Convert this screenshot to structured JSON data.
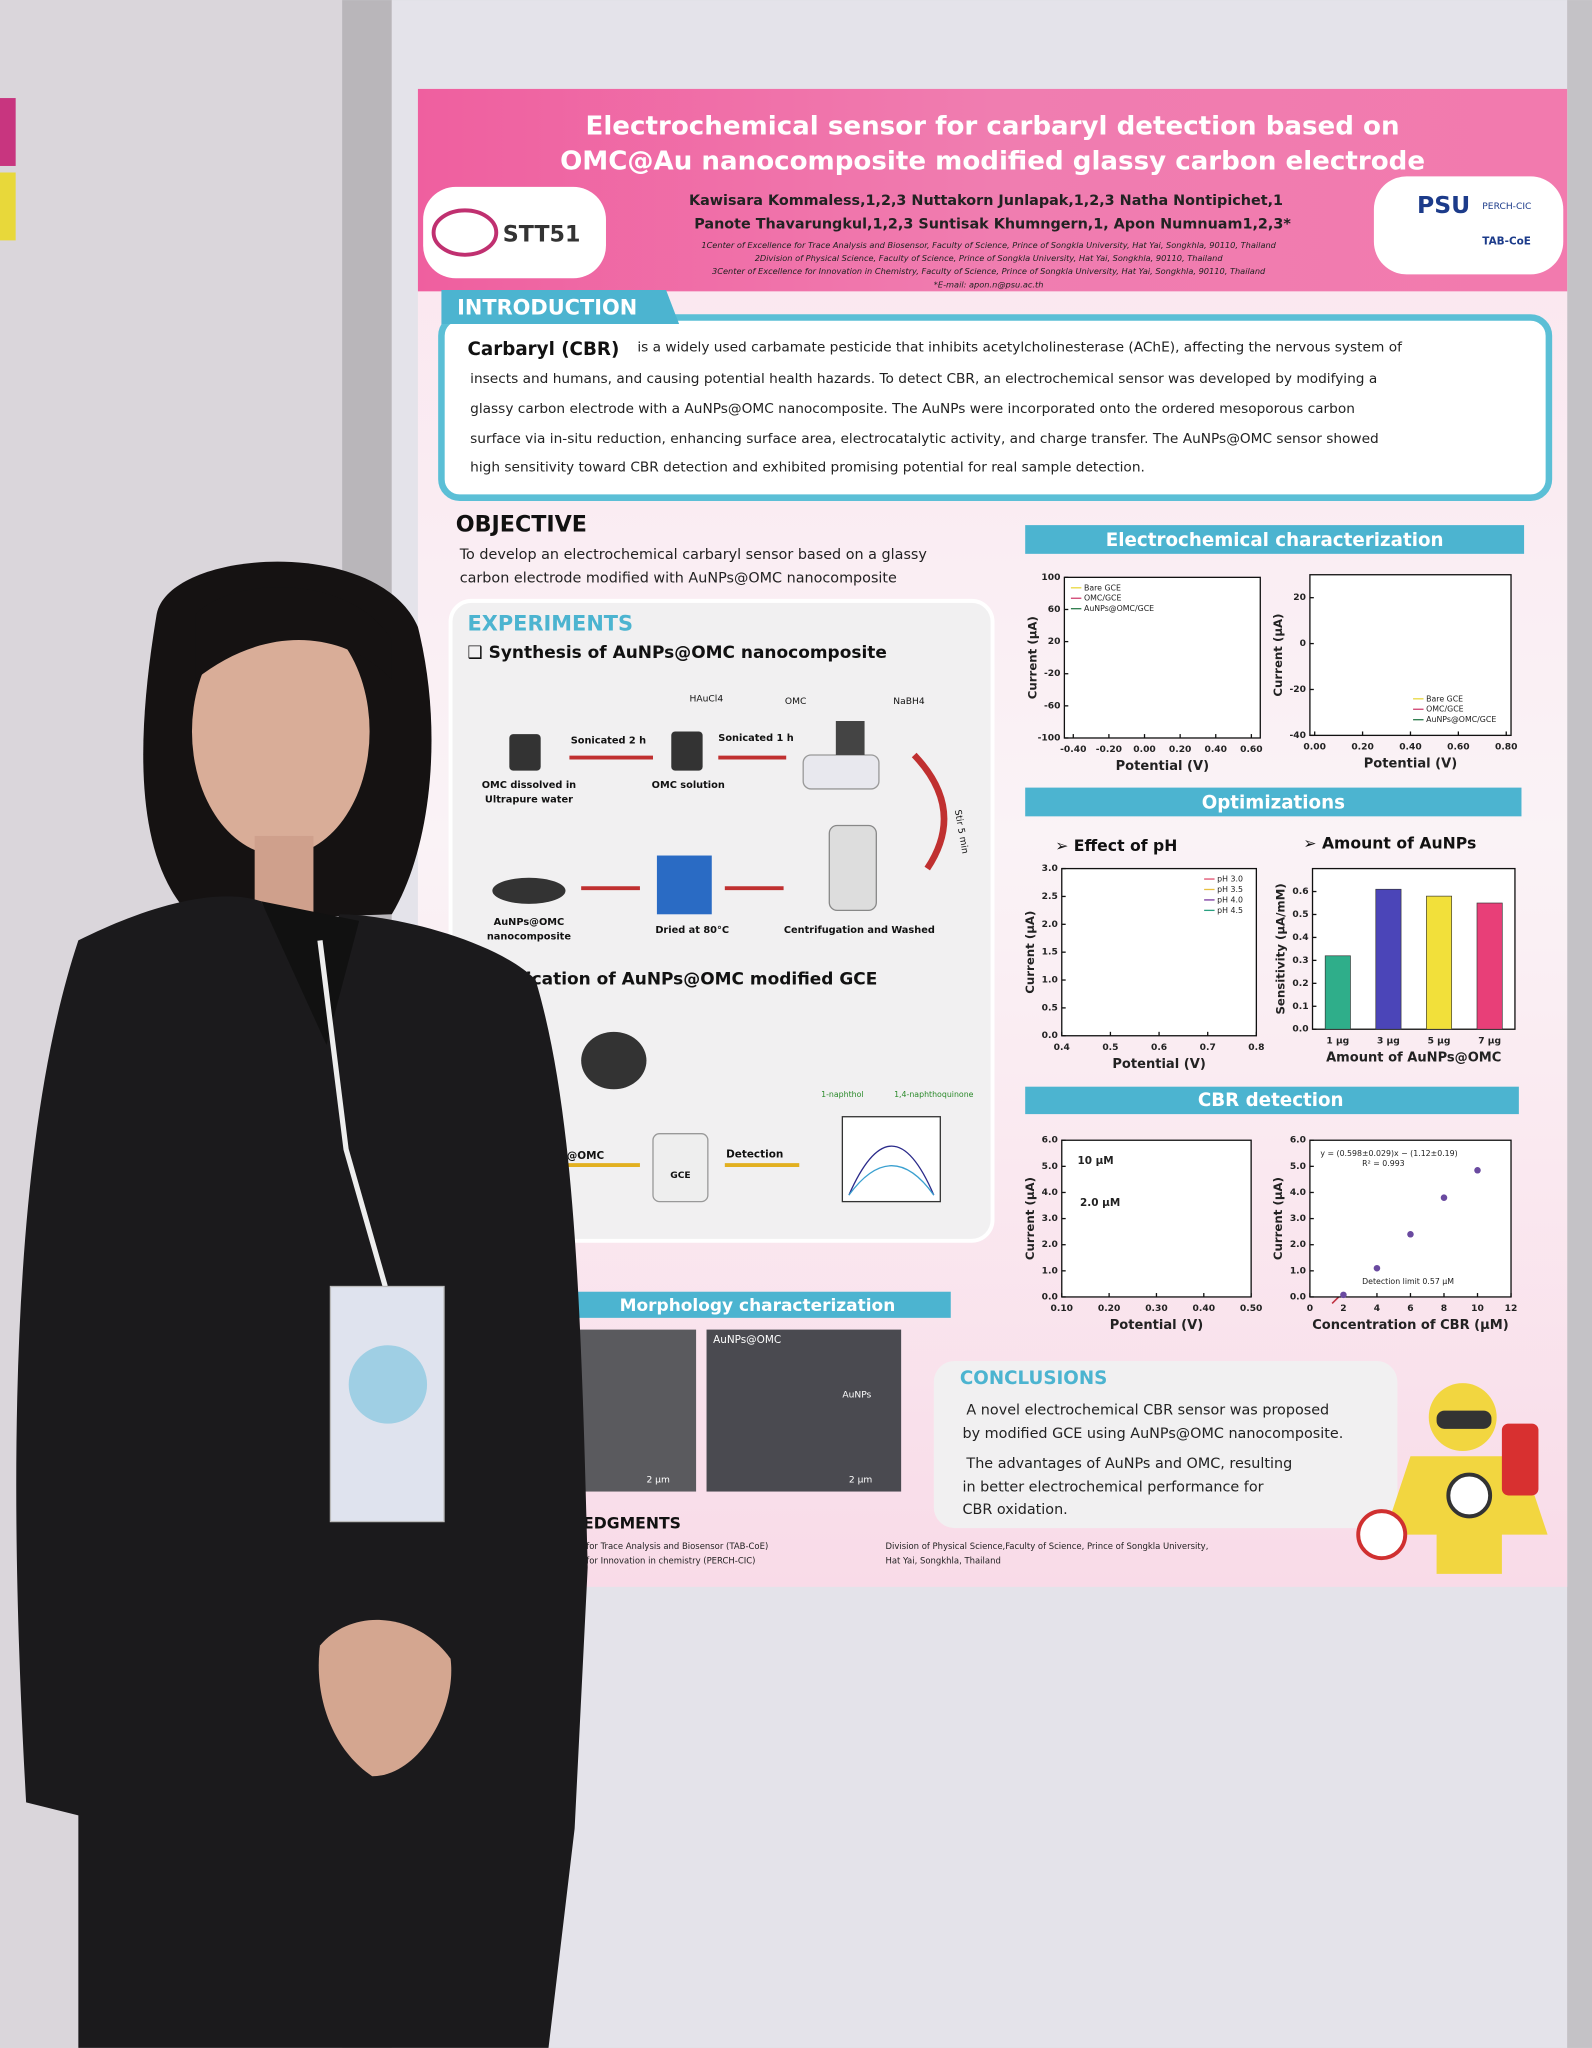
{
  "poster": {
    "title": [
      "Electrochemical sensor for carbaryl detection based on",
      "OMC@Au nanocomposite modified glassy carbon electrode"
    ],
    "authors": [
      "Kawisara Kommaless,1,2,3 Nuttakorn Junlapak,1,2,3 Natha Nontipichet,1",
      "Panote Thavarungkul,1,2,3 Suntisak Khumngern,1, Apon Numnuam1,2,3*"
    ],
    "affiliations": [
      "1Center of Excellence for Trace Analysis and Biosensor, Faculty of Science, Prince of Songkla University, Hat Yai, Songkhla, 90110, Thailand",
      "2Division of Physical Science, Faculty of Science, Prince of Songkla University, Hat Yai, Songkhla, 90110, Thailand",
      "3Center of Excellence for Innovation in Chemistry, Faculty of Science, Prince of Songkla University, Hat Yai, Songkhla, 90110, Thailand",
      "*E-mail: apon.n@psu.ac.th"
    ],
    "logo_left": "STT51",
    "logos_right": [
      "PSU",
      "PERCH-CIC",
      "TAB-CoE"
    ],
    "introduction": {
      "heading": "INTRODUCTION",
      "lead": "Carbaryl (CBR)",
      "lines": [
        "is a widely used carbamate pesticide that inhibits acetylcholinesterase (AChE), affecting the nervous system of",
        "insects and humans, and causing potential health hazards. To detect CBR, an electrochemical sensor was developed by modifying a",
        "glassy carbon electrode with a AuNPs@OMC nanocomposite. The AuNPs were incorporated onto the ordered mesoporous carbon",
        "surface via in-situ reduction, enhancing surface area, electrocatalytic activity, and charge transfer. The AuNPs@OMC sensor showed",
        "high sensitivity toward CBR detection and exhibited promising potential for real sample detection."
      ]
    },
    "objective": {
      "heading": "OBJECTIVE",
      "lines": [
        "To develop an electrochemical carbaryl sensor based on a glassy",
        "carbon electrode modified with AuNPs@OMC nanocomposite"
      ]
    },
    "experiments": {
      "heading": "EXPERIMENTS",
      "synthesis": "❑ Synthesis of AuNPs@OMC nanocomposite",
      "labels": [
        "HAuCl4",
        "OMC",
        "NaBH4",
        "Sonicated 2 h",
        "Sonicated 1 h",
        "OMC dissolved in",
        "Ultrapure water",
        "OMC solution",
        "Stir 5 min",
        "Centrifugation and Washed",
        "Dried at 80°C",
        "AuNPs@OMC",
        "nanocomposite"
      ],
      "fabrication": "Fabrication of AuNPs@OMC modified GCE",
      "fab_labels": [
        "1-naphthol",
        "1,4-naphthoquinone",
        "AuNPs@OMC",
        "GCE",
        "Detection"
      ]
    },
    "sections": [
      "Electrochemical characterization",
      "Optimizations",
      "CBR detection",
      "Morphology characterization"
    ],
    "sub": [
      "➢ Effect of pH",
      "➢ Amount of AuNPs"
    ],
    "sem": [
      "AuNPs@OMC",
      "AuNPs",
      "2 μm",
      "2 μm"
    ],
    "conclusions": {
      "heading": "CONCLUSIONS",
      "items": [
        [
          "A novel electrochemical CBR sensor was proposed",
          "by modified GCE using AuNPs@OMC nanocomposite."
        ],
        [
          "The advantages of AuNPs and OMC, resulting",
          "in better electrochemical performance for",
          "CBR oxidation."
        ]
      ]
    },
    "acknowledgments": {
      "heading": "ACKNOWLEDGMENTS",
      "items": [
        "Center of Excellence for Trace Analysis and Biosensor (TAB-CoE)",
        "Center of Excellence for Innovation in chemistry (PERCH-CIC)",
        "Division of Physical Science,Faculty of Science, Prince of Songkla University,",
        "Hat Yai, Songkhla, Thailand"
      ]
    }
  },
  "charts": [
    {
      "type": "line",
      "xlabel": "Potential (V)",
      "ylabel": "Current (μA)",
      "xlim": [
        -0.45,
        0.65
      ],
      "ylim": [
        -100,
        100
      ],
      "xticks": [
        {
          "value": -0.4,
          "label": "-0.40"
        },
        {
          "value": -0.2,
          "label": "-0.20"
        },
        {
          "value": 0,
          "label": "0.00"
        },
        {
          "value": 0.2,
          "label": "0.20"
        },
        {
          "value": 0.4,
          "label": "0.40"
        },
        {
          "value": 0.6,
          "label": "0.60"
        }
      ],
      "yticks": [
        -100,
        -60,
        -20,
        20,
        60,
        100
      ],
      "legend": [
        "Bare GCE",
        "OMC/GCE",
        "AuNPs@OMC/GCE"
      ]
    },
    {
      "type": "line",
      "xlabel": "Potential (V)",
      "ylabel": "Current (μA)",
      "xlim": [
        -0.02,
        0.82
      ],
      "ylim": [
        -40,
        30
      ],
      "xticks": [
        {
          "value": 0,
          "label": "0.00"
        },
        {
          "value": 0.2,
          "label": "0.20"
        },
        {
          "value": 0.4,
          "label": "0.40"
        },
        {
          "value": 0.6,
          "label": "0.60"
        },
        {
          "value": 0.8,
          "label": "0.80"
        }
      ],
      "yticks": [
        -40,
        -20,
        0,
        20
      ],
      "legend": [
        "Bare GCE",
        "OMC/GCE",
        "AuNPs@OMC/GCE"
      ]
    },
    {
      "type": "line",
      "xlabel": "Potential (V)",
      "ylabel": "Current (μA)",
      "xlim": [
        0.4,
        0.8
      ],
      "ylim": [
        0,
        3
      ],
      "xticks": [
        0.4,
        0.5,
        0.6,
        0.7,
        0.8
      ],
      "yticks": [
        {
          "value": 0,
          "label": "0.0"
        },
        0.5,
        {
          "value": 1,
          "label": "1.0"
        },
        1.5,
        {
          "value": 2,
          "label": "2.0"
        },
        2.5,
        {
          "value": 3,
          "label": "3.0"
        }
      ],
      "legend": [
        "pH 3.0",
        "pH 3.5",
        "pH 4.0",
        "pH 4.5"
      ]
    },
    {
      "type": "bar",
      "xlabel": "Amount of AuNPs@OMC",
      "ylabel": "Sensitivity (μA/mM)",
      "ylim": [
        0,
        0.7
      ],
      "yticks": [
        {
          "value": 0,
          "label": "0.0"
        },
        0.1,
        0.2,
        0.3,
        0.4,
        0.5,
        0.6
      ],
      "categories": [
        "1 μg",
        "3 μg",
        "5 μg",
        "7 μg"
      ],
      "values": [
        0.32,
        0.61,
        0.58,
        0.55
      ],
      "colors": [
        "#2fae8a",
        "#4b45b8",
        "#f2e03a",
        "#e83f78"
      ]
    },
    {
      "type": "line",
      "xlabel": "Potential (V)",
      "ylabel": "Current (μA)",
      "xlim": [
        0.1,
        0.5
      ],
      "ylim": [
        0,
        6
      ],
      "xticks": [
        {
          "value": 0.1,
          "label": "0.10"
        },
        {
          "value": 0.2,
          "label": "0.20"
        },
        {
          "value": 0.3,
          "label": "0.30"
        },
        {
          "value": 0.4,
          "label": "0.40"
        },
        {
          "value": 0.5,
          "label": "0.50"
        }
      ],
      "yticks": [
        {
          "value": 0,
          "label": "0.0"
        },
        {
          "value": 1,
          "label": "1.0"
        },
        {
          "value": 2,
          "label": "2.0"
        },
        {
          "value": 3,
          "label": "3.0"
        },
        {
          "value": 4,
          "label": "4.0"
        },
        {
          "value": 5,
          "label": "5.0"
        },
        {
          "value": 6,
          "label": "6.0"
        }
      ],
      "annotations": [
        "10 μM",
        "2.0 μM"
      ]
    },
    {
      "type": "scatter",
      "xlabel": "Concentration of CBR (μM)",
      "ylabel": "Current (μA)",
      "xlim": [
        0,
        12
      ],
      "ylim": [
        0,
        6
      ],
      "xticks": [
        0,
        2,
        4,
        6,
        8,
        10,
        12
      ],
      "yticks": [
        {
          "value": 0,
          "label": "0.0"
        },
        {
          "value": 1,
          "label": "1.0"
        },
        {
          "value": 2,
          "label": "2.0"
        },
        {
          "value": 3,
          "label": "3.0"
        },
        {
          "value": 4,
          "label": "4.0"
        },
        {
          "value": 5,
          "label": "5.0"
        },
        {
          "value": 6,
          "label": "6.0"
        }
      ],
      "x": [
        2,
        4,
        6,
        8,
        10
      ],
      "values": [
        0.08,
        1.1,
        2.4,
        3.8,
        4.85
      ],
      "annotations": [
        "y = (0.598±0.029)x − (1.12±0.19)",
        "R² = 0.993",
        "Detection limit 0.57 μM"
      ]
    }
  ]
}
